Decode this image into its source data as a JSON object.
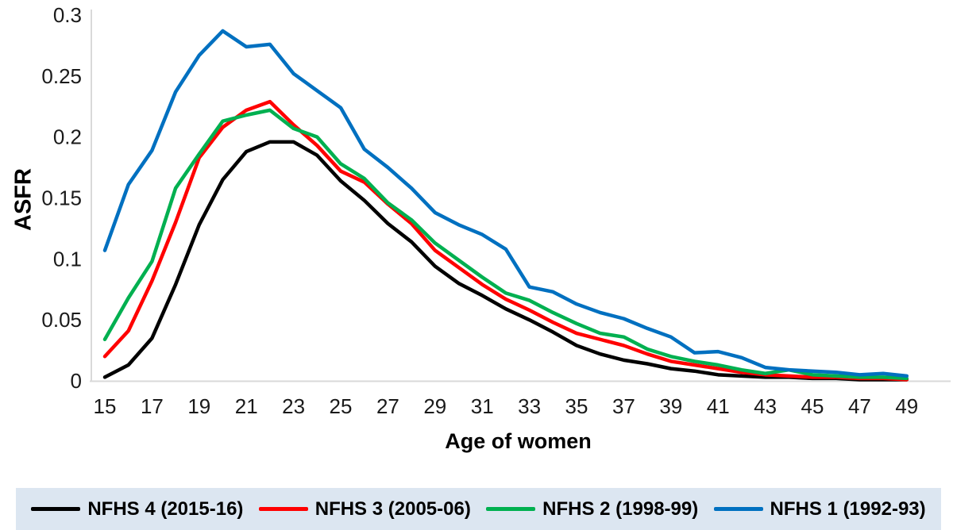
{
  "figure": {
    "background": "#FFFFFF",
    "legend_background": "#DCE6F1",
    "axis_line_color": "#D9D9D9"
  },
  "chart_data": {
    "type": "line",
    "title": "",
    "xlabel": "Age of women",
    "ylabel": "ASFR",
    "x": [
      15,
      16,
      17,
      18,
      19,
      20,
      21,
      22,
      23,
      24,
      25,
      26,
      27,
      28,
      29,
      30,
      31,
      32,
      33,
      34,
      35,
      36,
      37,
      38,
      39,
      40,
      41,
      42,
      43,
      44,
      45,
      46,
      47,
      48,
      49
    ],
    "xlim": [
      15,
      49
    ],
    "ylim": [
      0,
      0.3
    ],
    "grid": "off",
    "legend_position": "bottom",
    "ytick_values": [
      0,
      0.05,
      0.1,
      0.15,
      0.2,
      0.25,
      0.3
    ],
    "ytick_labels": [
      "0",
      "0.05",
      "0.1",
      "0.15",
      "0.2",
      "0.25",
      "0.3"
    ],
    "xtick_ages": [
      15,
      17,
      19,
      21,
      23,
      25,
      27,
      29,
      31,
      33,
      35,
      37,
      39,
      41,
      43,
      45,
      47,
      49
    ],
    "xtick_labels": [
      "15",
      "17",
      "19",
      "21",
      "23",
      "25",
      "27",
      "29",
      "31",
      "33",
      "35",
      "37",
      "39",
      "41",
      "43",
      "45",
      "47",
      "49"
    ],
    "series": [
      {
        "name": "NFHS 4 (2015-16)",
        "color": "#000000",
        "values": [
          0.003,
          0.013,
          0.035,
          0.079,
          0.128,
          0.165,
          0.188,
          0.196,
          0.196,
          0.185,
          0.164,
          0.148,
          0.129,
          0.114,
          0.094,
          0.08,
          0.07,
          0.059,
          0.05,
          0.04,
          0.029,
          0.022,
          0.017,
          0.014,
          0.01,
          0.008,
          0.005,
          0.004,
          0.003,
          0.003,
          0.002,
          0.002,
          0.001,
          0.001,
          0.001
        ]
      },
      {
        "name": "NFHS 3 (2005-06)",
        "color": "#FF0000",
        "values": [
          0.02,
          0.041,
          0.082,
          0.13,
          0.183,
          0.208,
          0.222,
          0.229,
          0.21,
          0.193,
          0.172,
          0.163,
          0.145,
          0.129,
          0.107,
          0.093,
          0.079,
          0.067,
          0.058,
          0.048,
          0.039,
          0.034,
          0.029,
          0.022,
          0.016,
          0.013,
          0.01,
          0.007,
          0.005,
          0.004,
          0.003,
          0.003,
          0.002,
          0.002,
          0.001
        ]
      },
      {
        "name": "NFHS 2 (1998-99)",
        "color": "#00B050",
        "values": [
          0.034,
          0.068,
          0.098,
          0.158,
          0.186,
          0.213,
          0.218,
          0.222,
          0.207,
          0.2,
          0.178,
          0.166,
          0.146,
          0.132,
          0.113,
          0.099,
          0.085,
          0.072,
          0.066,
          0.056,
          0.047,
          0.039,
          0.036,
          0.026,
          0.02,
          0.016,
          0.013,
          0.009,
          0.006,
          0.009,
          0.005,
          0.004,
          0.003,
          0.003,
          0.002
        ]
      },
      {
        "name": "NFHS 1 (1992-93)",
        "color": "#0070C0",
        "values": [
          0.107,
          0.161,
          0.189,
          0.237,
          0.267,
          0.287,
          0.274,
          0.276,
          0.252,
          0.238,
          0.224,
          0.19,
          0.175,
          0.158,
          0.138,
          0.128,
          0.12,
          0.108,
          0.077,
          0.073,
          0.063,
          0.056,
          0.051,
          0.043,
          0.036,
          0.023,
          0.024,
          0.019,
          0.011,
          0.009,
          0.008,
          0.007,
          0.005,
          0.006,
          0.004
        ]
      }
    ]
  }
}
